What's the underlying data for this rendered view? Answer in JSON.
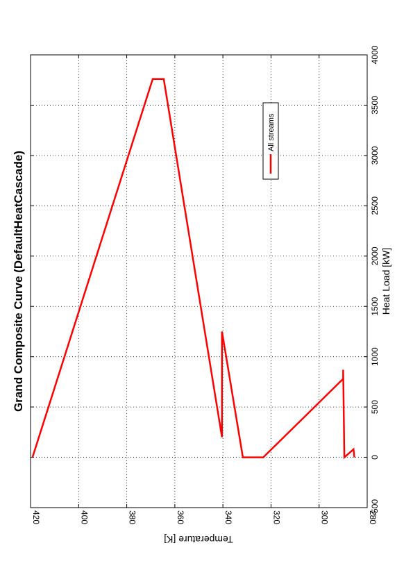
{
  "chart_data": {
    "type": "line",
    "title": "Grand Composite Curve (DefaultHeatCascade)",
    "xlabel": "Heat Load [kW]",
    "ylabel": "Temperature [K]",
    "xlim": [
      -500,
      4000
    ],
    "ylim": [
      280,
      420
    ],
    "x_ticks": [
      "-500",
      "0",
      "500",
      "1000",
      "1500",
      "2000",
      "2500",
      "3000",
      "3500",
      "4000"
    ],
    "y_ticks": [
      "280",
      "300",
      "320",
      "340",
      "360",
      "380",
      "400",
      "420"
    ],
    "x_tick_values": [
      -500,
      0,
      500,
      1000,
      1500,
      2000,
      2500,
      3000,
      3500,
      4000
    ],
    "y_tick_values": [
      280,
      300,
      320,
      340,
      360,
      380,
      400,
      420
    ],
    "grid": true,
    "orientation": "rotated-90-ccw",
    "legend_position": "top-right",
    "colors": {
      "series": "#ff0000",
      "axis": "#000000",
      "grid": "#000000"
    },
    "series": [
      {
        "name": "All streams",
        "color": "#ff0000",
        "points": [
          [
            0,
            419.2
          ],
          [
            3760,
            369.2
          ],
          [
            3760,
            364.6
          ],
          [
            200,
            340.4
          ],
          [
            1250,
            340.4
          ],
          [
            0,
            331.7
          ],
          [
            0,
            323.2
          ],
          [
            780,
            290.0
          ],
          [
            870,
            290.0
          ],
          [
            0,
            289.5
          ],
          [
            80,
            285.7
          ],
          [
            0,
            285.3
          ]
        ]
      }
    ]
  }
}
